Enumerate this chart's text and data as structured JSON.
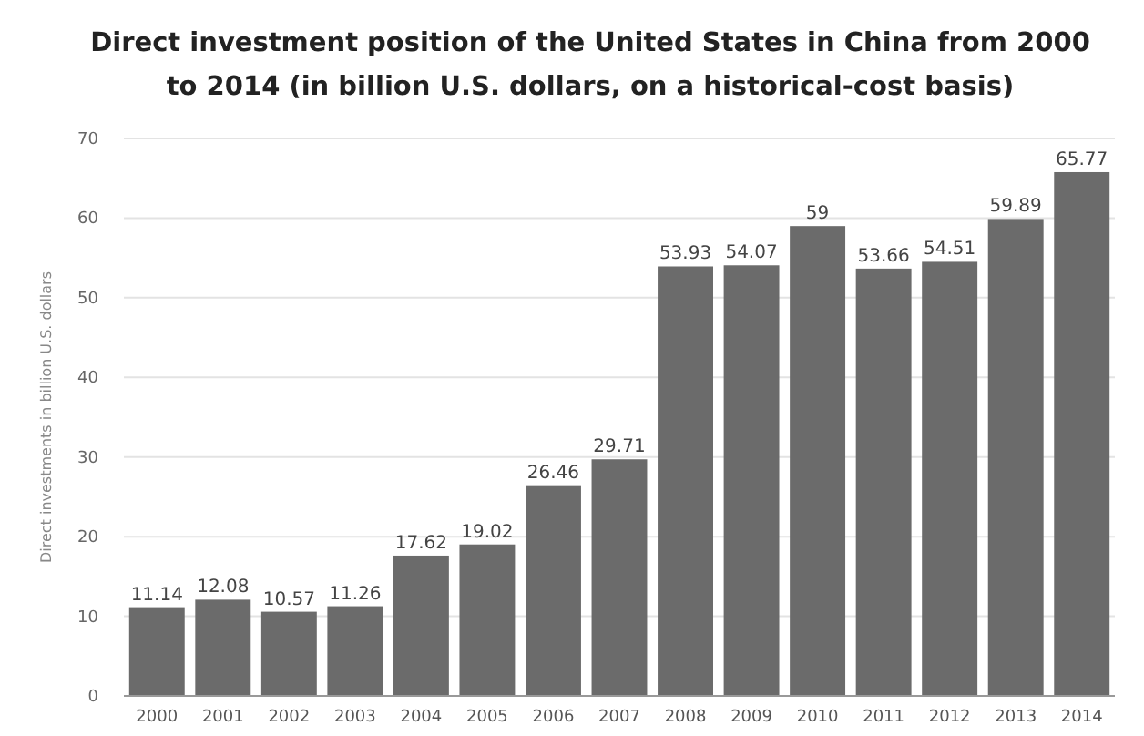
{
  "chart_data": {
    "type": "bar",
    "title": "Direct investment position of the United States in China from 2000 to 2014 (in billion U.S. dollars, on a historical-cost basis)",
    "ylabel": "Direct investments in billion U.S. dollars",
    "categories": [
      "2000",
      "2001",
      "2002",
      "2003",
      "2004",
      "2005",
      "2006",
      "2007",
      "2008",
      "2009",
      "2010",
      "2011",
      "2012",
      "2013",
      "2014"
    ],
    "values": [
      11.14,
      12.08,
      10.57,
      11.26,
      17.62,
      19.02,
      26.46,
      29.71,
      53.93,
      54.07,
      59,
      53.66,
      54.51,
      59.89,
      65.77
    ],
    "color": "#6b6b6b",
    "ylim": [
      0,
      70
    ],
    "yticks": [
      0,
      10,
      20,
      30,
      40,
      50,
      60,
      70
    ],
    "grid": "y",
    "data_labels": true
  }
}
